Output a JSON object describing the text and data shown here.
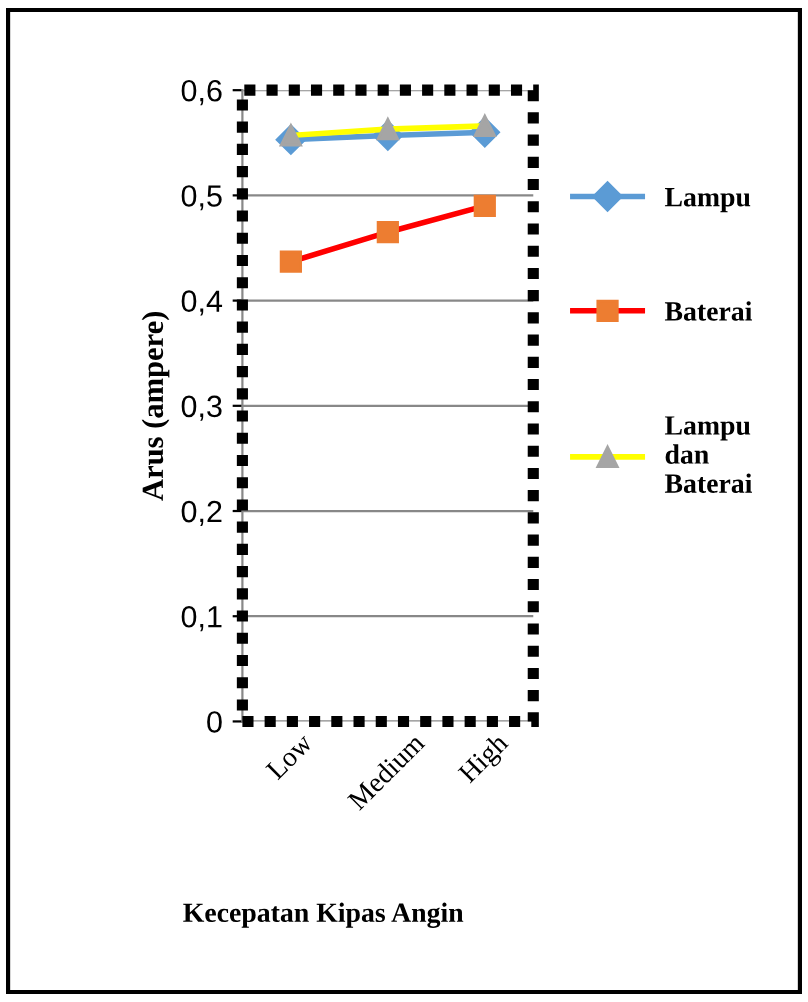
{
  "chart_data": {
    "type": "line",
    "xlabel": "Kecepatan Kipas Angin",
    "ylabel": "Arus (ampere)",
    "categories": [
      "Low",
      "Medium",
      "High"
    ],
    "series": [
      {
        "name": "Lampu",
        "color": "#5b9bd5",
        "marker": "diamond",
        "values": [
          0.553,
          0.557,
          0.56
        ]
      },
      {
        "name": "Baterai",
        "color": "#ff0000",
        "marker": "square",
        "values": [
          0.437,
          0.465,
          0.49
        ]
      },
      {
        "name": "Lampu dan Baterai",
        "color": "#ffff00",
        "marker": "triangle",
        "values": [
          0.557,
          0.563,
          0.566
        ]
      }
    ],
    "ylim": [
      0,
      0.6
    ],
    "yticks": [
      {
        "value": 0,
        "label": "0"
      },
      {
        "value": 0.1,
        "label": "0,1"
      },
      {
        "value": 0.2,
        "label": "0,2"
      },
      {
        "value": 0.3,
        "label": "0,3"
      },
      {
        "value": 0.4,
        "label": "0,4"
      },
      {
        "value": 0.5,
        "label": "0,5"
      },
      {
        "value": 0.6,
        "label": "0,6"
      }
    ],
    "grid": "y",
    "legend": "right"
  }
}
